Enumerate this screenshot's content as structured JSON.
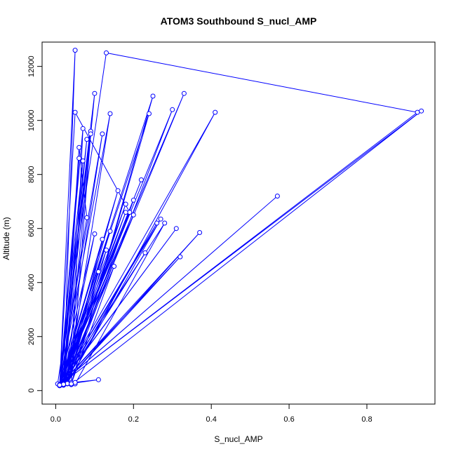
{
  "chart_data": {
    "type": "line",
    "title": "ATOM3 Southbound S_nucl_AMP",
    "xlabel": "S_nucl_AMP",
    "ylabel": "Altitude (m)",
    "x_ticks": [
      "0.0",
      "0.2",
      "0.4",
      "0.6",
      "0.8"
    ],
    "y_ticks": [
      "0",
      "2000",
      "4000",
      "6000",
      "8000",
      "10000",
      "12000"
    ],
    "xlim": [
      -0.035,
      0.975
    ],
    "ylim": [
      -500,
      12900
    ],
    "grid": false,
    "legend": "none",
    "marker": "open-circle",
    "color": "#0000ff",
    "series": [
      {
        "x": [
          0.01,
          0.04,
          0.02,
          0.05,
          0.01,
          0.03,
          0.11,
          0.02,
          0.005,
          0.13,
          0.93,
          0.01,
          0.94,
          0.04,
          0.02,
          0.09,
          0.01,
          0.3,
          0.03,
          0.02,
          0.12,
          0.01,
          0.2,
          0.02,
          0.05,
          0.01,
          0.31,
          0.01,
          0.02,
          0.06,
          0.08,
          0.01,
          0.27,
          0.03,
          0.01,
          0.22,
          0.01,
          0.02,
          0.15,
          0.04,
          0.01,
          0.41,
          0.03,
          0.01,
          0.07,
          0.02,
          0.01,
          0.57,
          0.01,
          0.18,
          0.02,
          0.01,
          0.1,
          0.03,
          0.01,
          0.33,
          0.02,
          0.01,
          0.25,
          0.04,
          0.01,
          0.12,
          0.03,
          0.01,
          0.37,
          0.02,
          0.01,
          0.05,
          0.19,
          0.01,
          0.32,
          0.02,
          0.01,
          0.14,
          0.03,
          0.01,
          0.23,
          0.02,
          0.01,
          0.09,
          0.04,
          0.01,
          0.26,
          0.02,
          0.01,
          0.11,
          0.03,
          0.01,
          0.16,
          0.02,
          0.01,
          0.28,
          0.05,
          0.01,
          0.14,
          0.02,
          0.01,
          0.2,
          0.03,
          0.01,
          0.08,
          0.02,
          0.01,
          0.24,
          0.04,
          0.01,
          0.06,
          0.02,
          0.01,
          0.13,
          0.03,
          0.01,
          0.18,
          0.02,
          0.01,
          0.07,
          0.04,
          0.01,
          0.1,
          0.02,
          0.01,
          0.05
        ],
        "y": [
          200,
          300,
          250,
          12600,
          200,
          280,
          400,
          220,
          250,
          12500,
          10300,
          200,
          10350,
          220,
          200,
          9600,
          180,
          10400,
          250,
          200,
          9500,
          220,
          6500,
          260,
          300,
          180,
          6000,
          200,
          240,
          9000,
          6400,
          200,
          6350,
          270,
          190,
          7800,
          210,
          230,
          4600,
          250,
          200,
          10300,
          260,
          190,
          8500,
          230,
          200,
          7200,
          210,
          6900,
          240,
          190,
          11000,
          260,
          200,
          11000,
          230,
          190,
          10900,
          250,
          200,
          5600,
          270,
          190,
          5850,
          240,
          200,
          10300,
          6600,
          190,
          4950,
          230,
          200,
          10250,
          260,
          190,
          5100,
          240,
          200,
          9500,
          250,
          190,
          6200,
          230,
          200,
          4400,
          260,
          190,
          7400,
          240,
          200,
          6200,
          250,
          190,
          5900,
          230,
          200,
          7050,
          260,
          190,
          9300,
          240,
          200,
          10250,
          250,
          190,
          8600,
          230,
          200,
          5200,
          260,
          190,
          6600,
          240,
          200,
          9700,
          250,
          190,
          5800,
          230,
          200,
          300
        ]
      }
    ]
  }
}
